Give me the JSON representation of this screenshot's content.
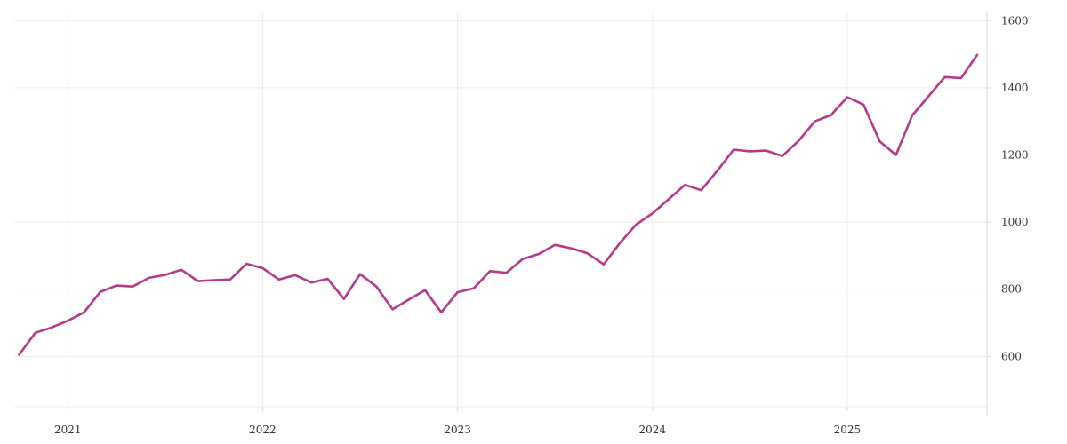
{
  "chart_data": {
    "type": "line",
    "title": "",
    "xlabel": "",
    "ylabel": "",
    "y_axis_side": "right",
    "grid": true,
    "ylim": [
      450,
      1630
    ],
    "xlim": [
      "2020-10-01",
      "2025-09-01"
    ],
    "x_ticks": [
      "2021-01-01",
      "2022-01-01",
      "2023-01-01",
      "2024-01-01",
      "2025-01-01"
    ],
    "x_tick_labels": [
      "2021",
      "2022",
      "2023",
      "2024",
      "2025"
    ],
    "y_ticks": [
      600,
      800,
      1000,
      1200,
      1400,
      1600
    ],
    "y_tick_labels": [
      "600",
      "800",
      "1000",
      "1200",
      "1400",
      "1600"
    ],
    "colors": {
      "series": "#b5388a",
      "grid": "#ececec"
    },
    "series": [
      {
        "x": [
          "2020-10",
          "2020-11",
          "2020-12",
          "2021-01",
          "2021-02",
          "2021-03",
          "2021-04",
          "2021-05",
          "2021-06",
          "2021-07",
          "2021-08",
          "2021-09",
          "2021-10",
          "2021-11",
          "2021-12",
          "2022-01",
          "2022-02",
          "2022-03",
          "2022-04",
          "2022-05",
          "2022-06",
          "2022-07",
          "2022-08",
          "2022-09",
          "2022-10",
          "2022-11",
          "2022-12",
          "2023-01",
          "2023-02",
          "2023-03",
          "2023-04",
          "2023-05",
          "2023-06",
          "2023-07",
          "2023-08",
          "2023-09",
          "2023-10",
          "2023-11",
          "2023-12",
          "2024-01",
          "2024-02",
          "2024-03",
          "2024-04",
          "2024-05",
          "2024-06",
          "2024-07",
          "2024-08",
          "2024-09",
          "2024-10",
          "2024-11",
          "2024-12",
          "2025-01",
          "2025-02",
          "2025-03",
          "2025-04",
          "2025-05",
          "2025-06",
          "2025-07",
          "2025-08",
          "2025-09"
        ],
        "values": [
          605,
          670,
          686,
          706,
          731,
          792,
          811,
          808,
          834,
          843,
          858,
          824,
          827,
          829,
          876,
          863,
          829,
          842,
          820,
          831,
          771,
          845,
          808,
          740,
          769,
          797,
          731,
          791,
          803,
          854,
          849,
          890,
          905,
          932,
          922,
          907,
          874,
          938,
          993,
          1026,
          1068,
          1111,
          1095,
          1153,
          1216,
          1211,
          1213,
          1197,
          1242,
          1300,
          1319,
          1372,
          1350,
          1240,
          1200,
          1318,
          1375,
          1432,
          1429,
          1498
        ]
      }
    ]
  }
}
